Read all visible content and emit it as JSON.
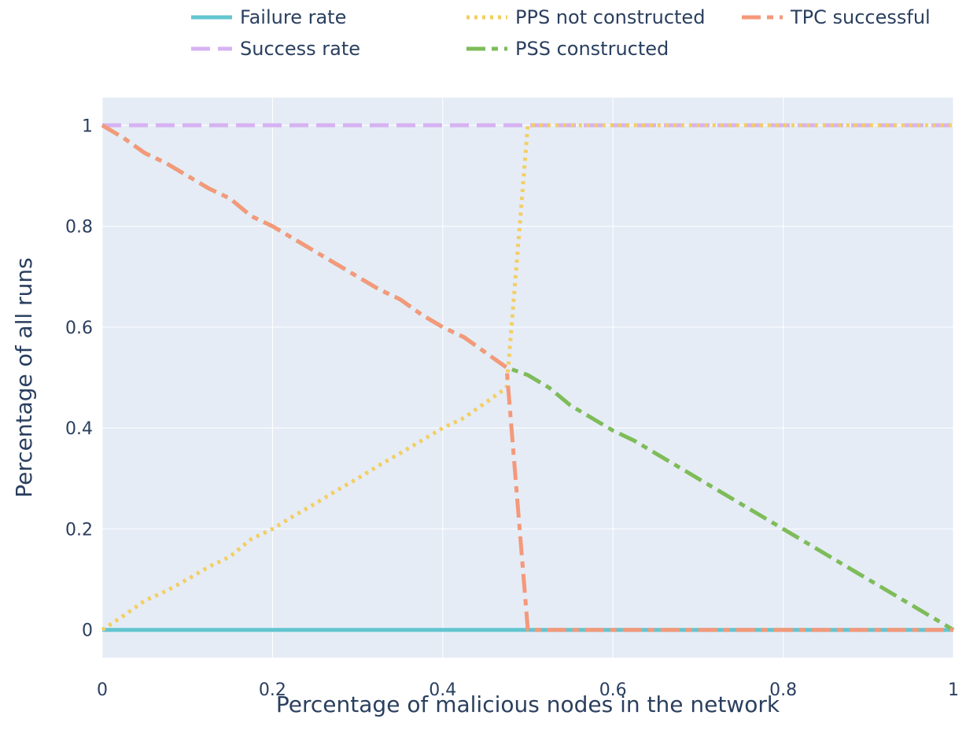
{
  "chart_data": {
    "type": "line",
    "title": "",
    "xlabel": "Percentage of malicious nodes in the network",
    "ylabel": "Percentage of all runs",
    "xlim": [
      0,
      1
    ],
    "ylim": [
      -0.055,
      1.055
    ],
    "x_ticks": [
      0,
      0.2,
      0.4,
      0.6,
      0.8,
      1
    ],
    "y_ticks": [
      0,
      0.2,
      0.4,
      0.6,
      0.8,
      1
    ],
    "x_tick_labels": [
      "0",
      "0.2",
      "0.4",
      "0.6",
      "0.8",
      "1"
    ],
    "y_tick_labels": [
      "0",
      "0.2",
      "0.4",
      "0.6",
      "0.8",
      "1"
    ],
    "grid": true,
    "legend_position": "top",
    "plot_background": "#e5ecf6",
    "grid_color": "#ffffff",
    "series": [
      {
        "name": "Failure rate",
        "color": "#63c5cf",
        "dash": "solid",
        "x": [
          0,
          0.5,
          1
        ],
        "y": [
          0,
          0,
          0
        ]
      },
      {
        "name": "Success rate",
        "color": "#d7b2f2",
        "dash": "dash",
        "x": [
          0,
          0.5,
          1
        ],
        "y": [
          1,
          1,
          1
        ]
      },
      {
        "name": "PPS not constructed",
        "color": "#f3ce62",
        "dash": "dot",
        "x": [
          0,
          0.025,
          0.05,
          0.075,
          0.1,
          0.125,
          0.15,
          0.175,
          0.2,
          0.225,
          0.25,
          0.275,
          0.3,
          0.325,
          0.35,
          0.375,
          0.4,
          0.425,
          0.45,
          0.475,
          0.5,
          0.55,
          0.6,
          0.65,
          0.7,
          0.75,
          0.8,
          0.85,
          0.9,
          0.95,
          1.0
        ],
        "y": [
          0,
          0.028,
          0.058,
          0.077,
          0.1,
          0.125,
          0.145,
          0.18,
          0.2,
          0.226,
          0.25,
          0.276,
          0.3,
          0.326,
          0.35,
          0.375,
          0.4,
          0.42,
          0.45,
          0.48,
          1.0,
          1.0,
          1.0,
          1.0,
          1.0,
          1.0,
          1.0,
          1.0,
          1.0,
          1.0,
          1.0
        ]
      },
      {
        "name": "PSS constructed",
        "color": "#7ebc59",
        "dash": "dashdot",
        "x": [
          0,
          0.025,
          0.05,
          0.075,
          0.1,
          0.125,
          0.15,
          0.175,
          0.2,
          0.225,
          0.25,
          0.275,
          0.3,
          0.325,
          0.35,
          0.375,
          0.4,
          0.425,
          0.45,
          0.475,
          0.5,
          0.525,
          0.55,
          0.575,
          0.6,
          0.625,
          0.65,
          0.675,
          0.7,
          0.725,
          0.75,
          0.775,
          0.8,
          0.825,
          0.85,
          0.875,
          0.9,
          0.925,
          0.95,
          0.975,
          1.0
        ],
        "y": [
          1.0,
          0.975,
          0.945,
          0.925,
          0.9,
          0.875,
          0.855,
          0.82,
          0.8,
          0.775,
          0.75,
          0.725,
          0.7,
          0.675,
          0.655,
          0.625,
          0.6,
          0.58,
          0.55,
          0.52,
          0.505,
          0.48,
          0.445,
          0.42,
          0.395,
          0.375,
          0.35,
          0.325,
          0.3,
          0.275,
          0.25,
          0.225,
          0.2,
          0.175,
          0.15,
          0.125,
          0.1,
          0.075,
          0.05,
          0.025,
          0.0
        ]
      },
      {
        "name": "TPC successful",
        "color": "#f4997a",
        "dash": "dashdot",
        "x": [
          0,
          0.025,
          0.05,
          0.075,
          0.1,
          0.125,
          0.15,
          0.175,
          0.2,
          0.225,
          0.25,
          0.275,
          0.3,
          0.325,
          0.35,
          0.375,
          0.4,
          0.425,
          0.45,
          0.475,
          0.5,
          0.55,
          0.6,
          0.65,
          0.7,
          0.75,
          0.8,
          0.85,
          0.9,
          0.95,
          1.0
        ],
        "y": [
          1.0,
          0.975,
          0.945,
          0.925,
          0.9,
          0.875,
          0.855,
          0.82,
          0.8,
          0.775,
          0.75,
          0.725,
          0.7,
          0.675,
          0.655,
          0.625,
          0.6,
          0.58,
          0.55,
          0.52,
          0.0,
          0.0,
          0.0,
          0.0,
          0.0,
          0.0,
          0.0,
          0.0,
          0.0,
          0.0,
          0.0
        ]
      }
    ]
  }
}
